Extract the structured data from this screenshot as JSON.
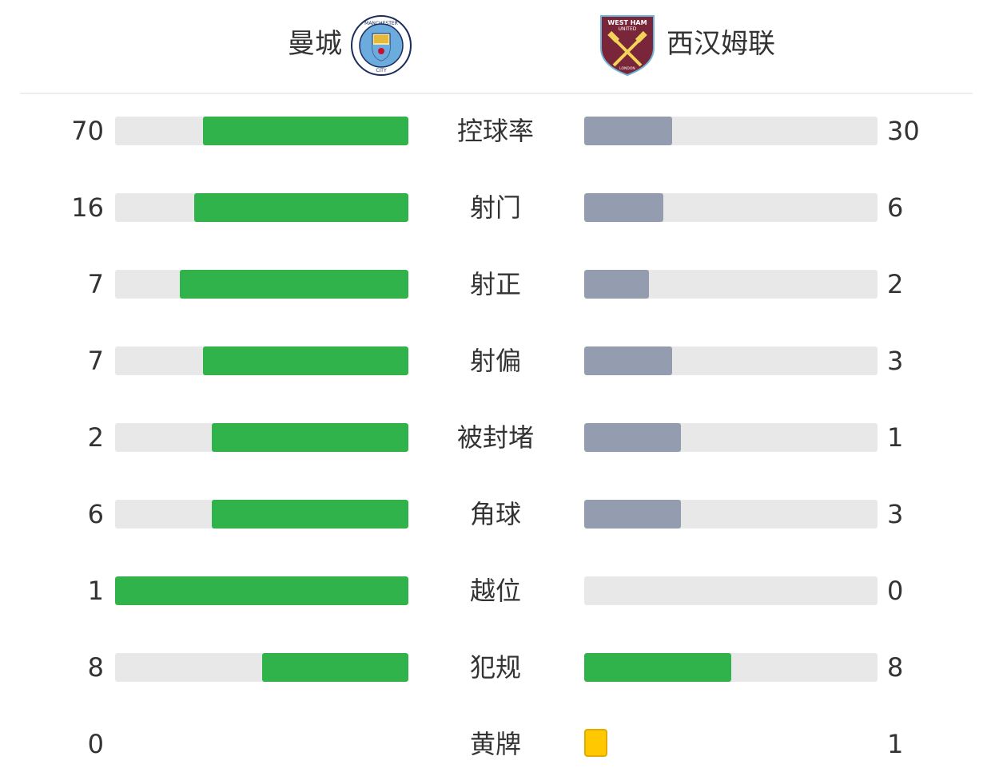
{
  "home": {
    "name": "曼城",
    "logo_text": "MANCHESTER CITY",
    "logo": "manchester-city-crest"
  },
  "away": {
    "name": "西汉姆联",
    "logo_text": "WEST HAM UNITED LONDON",
    "logo": "west-ham-crest"
  },
  "colors": {
    "home_bar": "#2fb34a",
    "away_bar": "#949cb0",
    "equal_bar": "#2fb34a",
    "track": "#e8e8e8",
    "yellow_card": "#ffc800"
  },
  "stats": [
    {
      "label": "控球率",
      "home": "70",
      "away": "30",
      "home_fill_pct": 70,
      "away_fill_pct": 30,
      "away_color": "gray"
    },
    {
      "label": "射门",
      "home": "16",
      "away": "6",
      "home_fill_pct": 73,
      "away_fill_pct": 27,
      "away_color": "gray"
    },
    {
      "label": "射正",
      "home": "7",
      "away": "2",
      "home_fill_pct": 78,
      "away_fill_pct": 22,
      "away_color": "gray"
    },
    {
      "label": "射偏",
      "home": "7",
      "away": "3",
      "home_fill_pct": 70,
      "away_fill_pct": 30,
      "away_color": "gray"
    },
    {
      "label": "被封堵",
      "home": "2",
      "away": "1",
      "home_fill_pct": 67,
      "away_fill_pct": 33,
      "away_color": "gray"
    },
    {
      "label": "角球",
      "home": "6",
      "away": "3",
      "home_fill_pct": 67,
      "away_fill_pct": 33,
      "away_color": "gray"
    },
    {
      "label": "越位",
      "home": "1",
      "away": "0",
      "home_fill_pct": 100,
      "away_fill_pct": 0,
      "away_color": "gray"
    },
    {
      "label": "犯规",
      "home": "8",
      "away": "8",
      "home_fill_pct": 50,
      "away_fill_pct": 50,
      "away_color": "green"
    },
    {
      "label": "黄牌",
      "home": "0",
      "away": "1",
      "type": "card"
    }
  ]
}
